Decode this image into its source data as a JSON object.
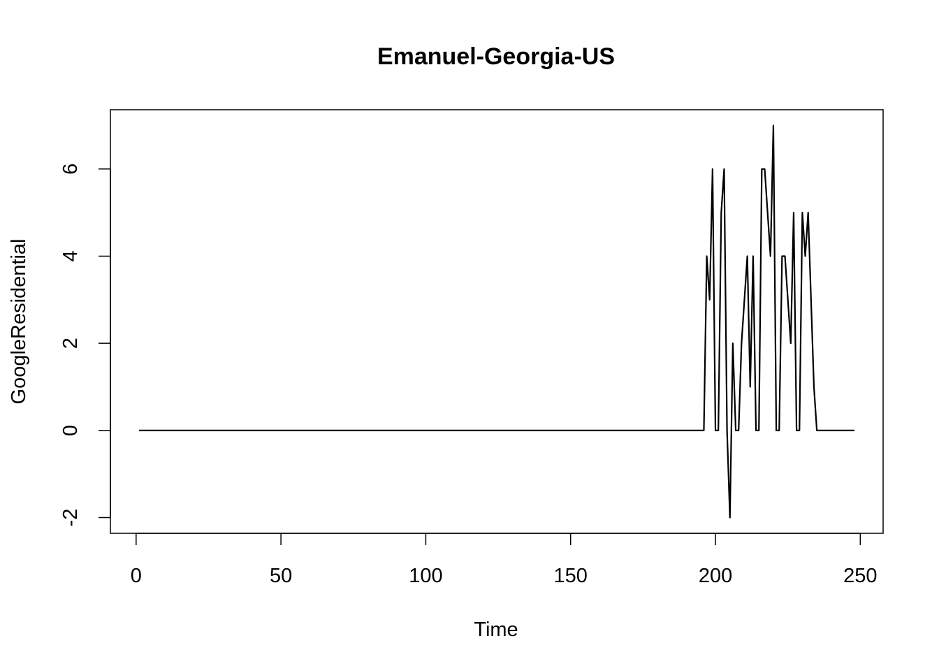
{
  "chart_data": {
    "type": "line",
    "title": "Emanuel-Georgia-US",
    "xlabel": "Time",
    "ylabel": "GoogleResidential",
    "xlim": [
      -8.88,
      257.88
    ],
    "ylim": [
      -2.36,
      7.36
    ],
    "xticks": [
      0,
      50,
      100,
      150,
      200,
      250
    ],
    "yticks": [
      -2,
      0,
      2,
      4,
      6
    ],
    "grid": false,
    "legend": "none",
    "line_color": "#000000",
    "series": [
      {
        "x": [
          1,
          196,
          197,
          198,
          199,
          200,
          201,
          202,
          203,
          204,
          205,
          206,
          207,
          208,
          209,
          210,
          211,
          212,
          213,
          214,
          215,
          216,
          217,
          218,
          219,
          220,
          221,
          222,
          223,
          224,
          225,
          226,
          227,
          228,
          229,
          230,
          231,
          232,
          233,
          234,
          235,
          248
        ],
        "values": [
          0,
          0,
          4,
          3,
          6,
          0,
          0,
          5,
          6,
          0,
          -2,
          2,
          0,
          0,
          2,
          3,
          4,
          1,
          4,
          0,
          0,
          6,
          6,
          5,
          4,
          7,
          0,
          0,
          4,
          4,
          3,
          2,
          5,
          0,
          0,
          5,
          4,
          5,
          3,
          1,
          0,
          0
        ]
      }
    ]
  }
}
